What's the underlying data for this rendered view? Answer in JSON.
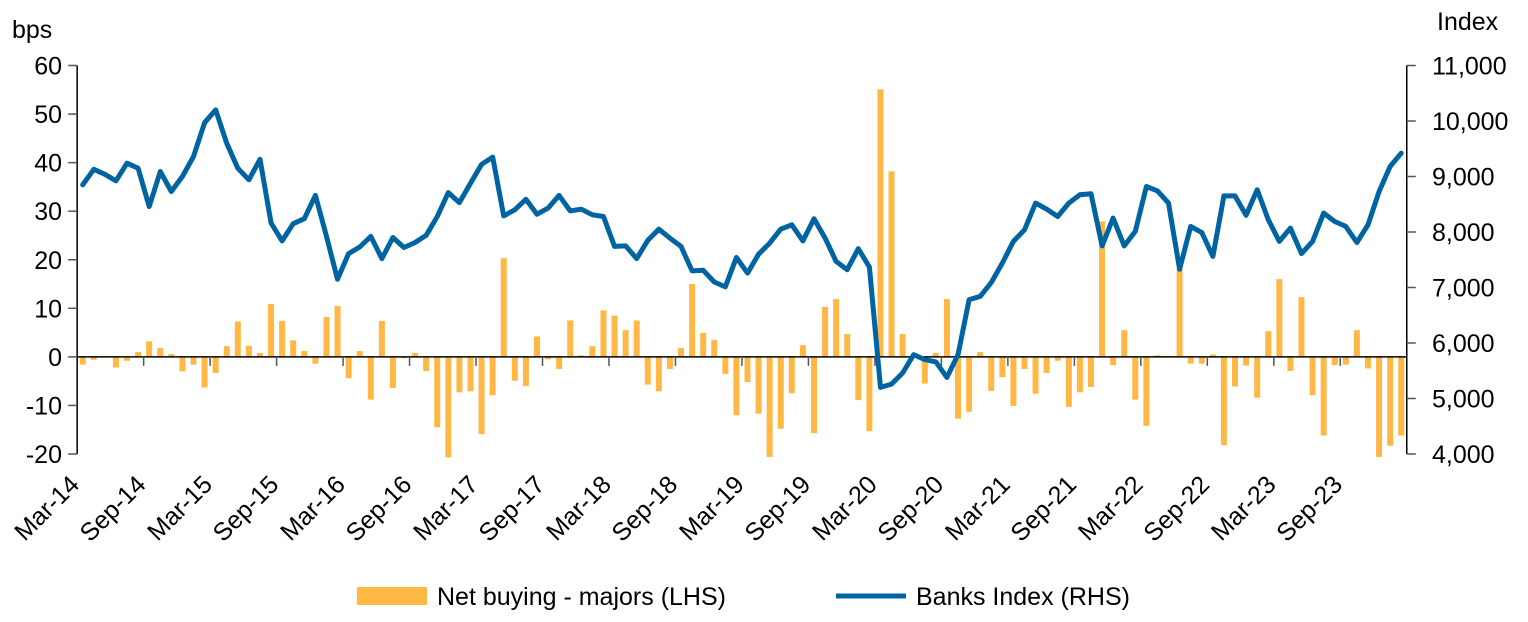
{
  "chart_data": {
    "type": "bar+line",
    "left_axis": {
      "title": "bps",
      "ylim": [
        -20,
        60
      ],
      "ticks": [
        "60",
        "50",
        "40",
        "30",
        "20",
        "10",
        "0",
        "-10",
        "-20"
      ],
      "tick_values": [
        60,
        50,
        40,
        30,
        20,
        10,
        0,
        -10,
        -20
      ]
    },
    "right_axis": {
      "title": "Index",
      "ylim": [
        4000,
        11000
      ],
      "ticks": [
        "11,000",
        "10,000",
        "9,000",
        "8,000",
        "7,000",
        "6,000",
        "5,000",
        "4,000"
      ],
      "tick_values": [
        11000,
        10000,
        9000,
        8000,
        7000,
        6000,
        5000,
        4000
      ]
    },
    "x_labels": [
      "Mar-14",
      "Sep-14",
      "Mar-15",
      "Sep-15",
      "Mar-16",
      "Sep-16",
      "Mar-17",
      "Sep-17",
      "Mar-18",
      "Sep-18",
      "Mar-19",
      "Sep-19",
      "Mar-20",
      "Sep-20",
      "Mar-21",
      "Sep-21",
      "Mar-22",
      "Sep-22",
      "Mar-23",
      "Sep-23"
    ],
    "x_start": "Mar-14",
    "frequency": "monthly",
    "grid": false,
    "legend_position": "bottom",
    "series": [
      {
        "name": "Net buying - majors (LHS)",
        "type": "bar",
        "axis": "left",
        "color": "#FFB845",
        "values": [
          -1.6,
          -0.6,
          0.2,
          -2.2,
          -0.8,
          1.0,
          3.2,
          1.8,
          0.6,
          -3.0,
          -1.6,
          -6.3,
          -3.3,
          2.2,
          7.3,
          2.3,
          0.8,
          10.9,
          7.4,
          3.4,
          1.2,
          -1.4,
          8.2,
          10.5,
          -4.4,
          1.2,
          -8.8,
          7.4,
          -6.4,
          -0.3,
          0.8,
          -2.9,
          -14.5,
          -20.7,
          -7.3,
          -7.1,
          -15.9,
          -7.9,
          20.3,
          -4.9,
          -6.0,
          4.2,
          -0.5,
          -2.5,
          7.5,
          0.3,
          2.2,
          9.6,
          8.5,
          5.5,
          7.5,
          -5.7,
          -7.1,
          -2.5,
          1.8,
          15.0,
          4.9,
          3.5,
          -3.5,
          -12.0,
          -5.2,
          -11.7,
          -20.6,
          -14.8,
          -7.5,
          2.4,
          -15.7,
          10.3,
          11.9,
          4.7,
          -8.9,
          -15.3,
          55.1,
          38.2,
          4.7,
          0,
          -5.5,
          0.8,
          11.9,
          -12.7,
          -11.3,
          1.0,
          -7.0,
          -4.2,
          -10.1,
          -2.5,
          -7.6,
          -3.3,
          -0.8,
          -10.3,
          -7.3,
          -6.2,
          27.9,
          -1.7,
          5.5,
          -8.8,
          -14.2,
          0.3,
          0.2,
          18.2,
          -1.4,
          -1.4,
          0.5,
          -18.2,
          -6.1,
          -1.8,
          -8.4,
          5.3,
          16.0,
          -2.9,
          12.3,
          -7.9,
          -16.2,
          -1.7,
          -1.6,
          5.5,
          -2.4,
          -20.6,
          -18.3,
          -16.2
        ]
      },
      {
        "name": "Banks Index (RHS)",
        "type": "line",
        "axis": "right",
        "color": "#0064A3",
        "values": [
          8850,
          9130,
          9040,
          8920,
          9240,
          9150,
          8460,
          9090,
          8730,
          9000,
          9360,
          9970,
          10200,
          9600,
          9150,
          8940,
          9310,
          8160,
          7840,
          8150,
          8240,
          8660,
          7920,
          7150,
          7610,
          7730,
          7920,
          7520,
          7900,
          7720,
          7810,
          7940,
          8280,
          8710,
          8530,
          8880,
          9220,
          9350,
          8290,
          8400,
          8590,
          8320,
          8430,
          8660,
          8380,
          8410,
          8310,
          8280,
          7740,
          7750,
          7520,
          7850,
          8050,
          7890,
          7740,
          7300,
          7310,
          7100,
          7010,
          7540,
          7260,
          7600,
          7800,
          8050,
          8130,
          7840,
          8240,
          7890,
          7470,
          7320,
          7700,
          7370,
          5200,
          5260,
          5460,
          5790,
          5700,
          5660,
          5380,
          5790,
          6780,
          6840,
          7090,
          7440,
          7830,
          8040,
          8520,
          8410,
          8280,
          8520,
          8670,
          8690,
          7750,
          8250,
          7750,
          8010,
          8820,
          8740,
          8520,
          7330,
          8100,
          7990,
          7560,
          8650,
          8650,
          8300,
          8760,
          8220,
          7830,
          8070,
          7610,
          7830,
          8340,
          8190,
          8100,
          7810,
          8130,
          8730,
          9180,
          9420
        ]
      }
    ]
  }
}
